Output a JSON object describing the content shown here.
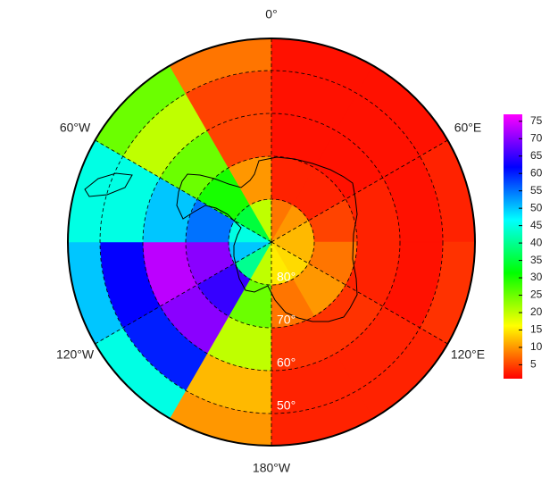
{
  "chart_data": {
    "type": "polar_heatmap",
    "latlim": [
      90,
      42.5
    ],
    "lon_ticks": [
      {
        "value": 0,
        "label": "0°"
      },
      {
        "value": 60,
        "label": "60°E"
      },
      {
        "value": 120,
        "label": "120°E"
      },
      {
        "value": 180,
        "label": "180°W"
      },
      {
        "value": -120,
        "label": "120°W"
      },
      {
        "value": -60,
        "label": "60°W"
      }
    ],
    "lat_ticks": [
      {
        "value": 80,
        "label": "80°"
      },
      {
        "value": 70,
        "label": "70°"
      },
      {
        "value": 60,
        "label": "60°"
      },
      {
        "value": 50,
        "label": "50°"
      }
    ],
    "field": {
      "lon_edges": [
        -180,
        -150,
        -120,
        -90,
        -60,
        -30,
        0,
        30,
        60,
        90,
        120,
        150,
        180
      ],
      "lat_edges": [
        90,
        80,
        70,
        60,
        50,
        42.5
      ],
      "values": [
        [
          20,
          40,
          50,
          45,
          35,
          20,
          8,
          10,
          12,
          12,
          14,
          15
        ],
        [
          25,
          65,
          70,
          55,
          30,
          10,
          3,
          3,
          5,
          8,
          10,
          8
        ],
        [
          20,
          70,
          73,
          50,
          25,
          5,
          2,
          2,
          3,
          3,
          4,
          4
        ],
        [
          12,
          60,
          62,
          45,
          20,
          5,
          2,
          2,
          2,
          2,
          3,
          3
        ],
        [
          10,
          45,
          50,
          45,
          25,
          8,
          2,
          2,
          3,
          4,
          3,
          3
        ]
      ]
    },
    "colorbar": {
      "lim": [
        1,
        77
      ],
      "ticks": [
        5,
        10,
        15,
        20,
        25,
        30,
        35,
        40,
        45,
        50,
        55,
        60,
        65,
        70,
        75
      ]
    }
  }
}
